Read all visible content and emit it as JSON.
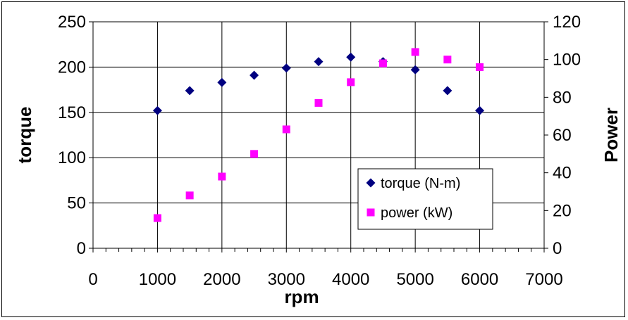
{
  "chart_data": {
    "type": "scatter",
    "xlabel": "rpm",
    "ylabel": "torque",
    "y2label": "Power",
    "xlim": [
      0,
      7000
    ],
    "ylim": [
      0,
      250
    ],
    "y2lim": [
      0,
      120
    ],
    "xticks": [
      0,
      1000,
      2000,
      3000,
      4000,
      5000,
      6000,
      7000
    ],
    "yticks": [
      0,
      50,
      100,
      150,
      200,
      250
    ],
    "y2ticks": [
      0,
      20,
      40,
      60,
      80,
      100,
      120
    ],
    "grid": true,
    "legend_position": "lower-right",
    "series": [
      {
        "name": "torque (N-m)",
        "axis": "left",
        "marker": "diamond",
        "color": "#000080",
        "x": [
          1000,
          1500,
          2000,
          2500,
          3000,
          3500,
          4000,
          4500,
          5000,
          5500,
          6000
        ],
        "y": [
          152,
          174,
          183,
          191,
          199,
          206,
          211,
          206,
          197,
          174,
          152
        ]
      },
      {
        "name": "power (kW)",
        "axis": "right",
        "marker": "square",
        "color": "#FF00FF",
        "x": [
          1000,
          1500,
          2000,
          2500,
          3000,
          3500,
          4000,
          4500,
          5000,
          5500,
          6000
        ],
        "y": [
          16,
          28,
          38,
          50,
          63,
          77,
          88,
          98,
          104,
          100,
          96
        ]
      }
    ]
  }
}
